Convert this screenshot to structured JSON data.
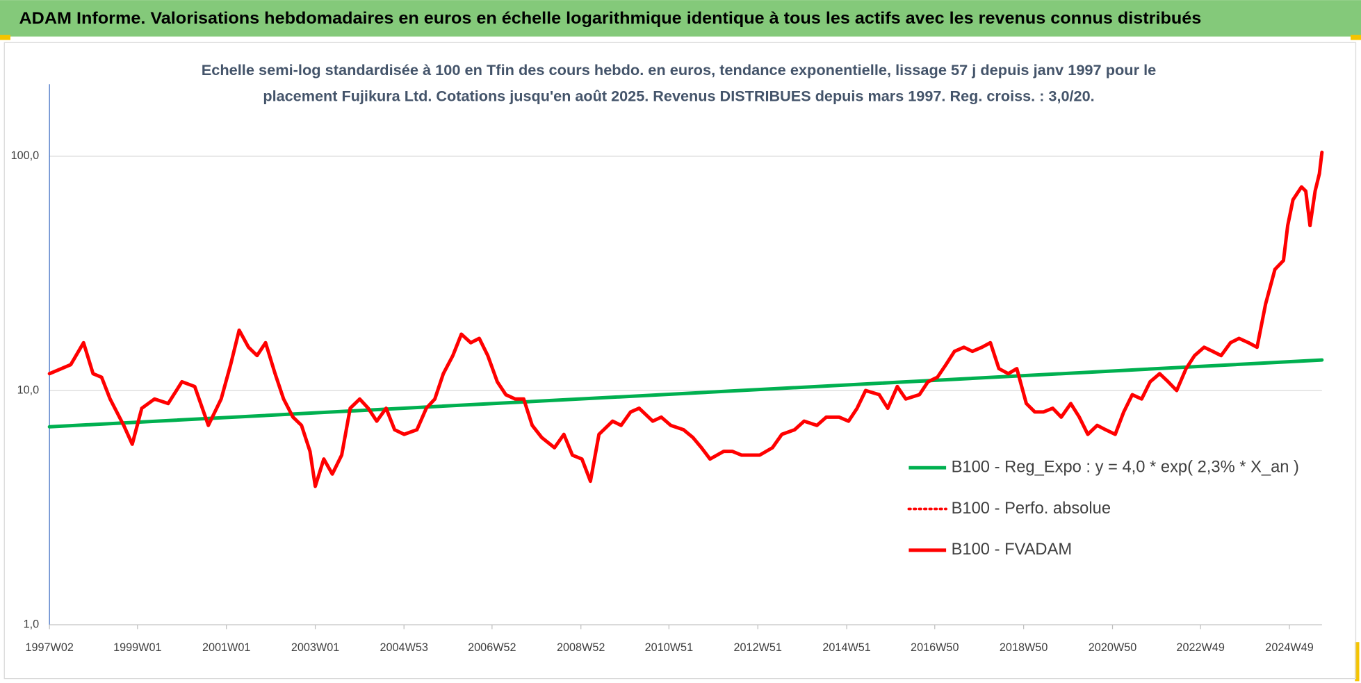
{
  "chart_data": {
    "type": "line",
    "title": "ADAM Informe. Valorisations hebdomadaires en euros en échelle logarithmique identique à tous les actifs avec les revenus connus distribués",
    "subtitle": [
      "Echelle semi-log standardisée à 100 en Tfin des cours hebdo. en euros, tendance exponentielle, lissage 57 j depuis janv 1997 pour le",
      "placement Fujikura Ltd. Cotations jusqu'en août 2025. Revenus DISTRIBUES depuis mars 1997. Reg. croiss. : 3,0/20."
    ],
    "log_scale": true,
    "grid": true,
    "legend": "center-right",
    "ylim": [
      1,
      203
    ],
    "yticks": [
      {
        "value": 1,
        "label": "1,0"
      },
      {
        "value": 10,
        "label": "10,0"
      },
      {
        "value": 100,
        "label": "100,0"
      }
    ],
    "xlim": [
      "1997W02",
      "2025W35"
    ],
    "xticks": [
      "1997W02",
      "1999W01",
      "2001W01",
      "2003W01",
      "2004W53",
      "2006W52",
      "2008W52",
      "2010W51",
      "2012W51",
      "2014W51",
      "2016W50",
      "2018W50",
      "2020W50",
      "2022W49",
      "2024W49"
    ],
    "x": [
      "1997W02",
      "1997W16",
      "1997W27",
      "1997W42",
      "1998W01",
      "1998W11",
      "1998W21",
      "1998W37",
      "1998W47",
      "1999W06",
      "1999W21",
      "1999W37",
      "2000W01",
      "2000W16",
      "2000W32",
      "2000W47",
      "2001W06",
      "2001W16",
      "2001W27",
      "2001W37",
      "2001W47",
      "2002W06",
      "2002W16",
      "2002W27",
      "2002W37",
      "2002W47",
      "2003W01",
      "2003W11",
      "2003W21",
      "2003W32",
      "2003W42",
      "2004W01",
      "2004W11",
      "2004W21",
      "2004W32",
      "2004W42",
      "2005W01",
      "2005W16",
      "2005W27",
      "2005W37",
      "2005W47",
      "2006W06",
      "2006W16",
      "2006W27",
      "2006W37",
      "2006W47",
      "2007W06",
      "2007W16",
      "2007W27",
      "2007W37",
      "2007W47",
      "2008W06",
      "2008W21",
      "2008W32",
      "2008W42",
      "2009W01",
      "2009W11",
      "2009W21",
      "2009W37",
      "2009W47",
      "2010W06",
      "2010W16",
      "2010W32",
      "2010W42",
      "2011W01",
      "2011W16",
      "2011W27",
      "2011W37",
      "2011W47",
      "2012W11",
      "2012W21",
      "2012W32",
      "2012W42",
      "2013W01",
      "2013W16",
      "2013W27",
      "2013W42",
      "2014W01",
      "2014W16",
      "2014W27",
      "2014W42",
      "2015W01",
      "2015W11",
      "2015W21",
      "2015W37",
      "2015W47",
      "2016W06",
      "2016W16",
      "2016W32",
      "2016W42",
      "2017W01",
      "2017W11",
      "2017W21",
      "2017W32",
      "2017W42",
      "2018W01",
      "2018W11",
      "2018W21",
      "2018W32",
      "2018W42",
      "2019W01",
      "2019W11",
      "2019W21",
      "2019W32",
      "2019W42",
      "2020W01",
      "2020W11",
      "2020W21",
      "2020W32",
      "2020W42",
      "2021W01",
      "2021W11",
      "2021W21",
      "2021W32",
      "2021W42",
      "2022W01",
      "2022W11",
      "2022W21",
      "2022W32",
      "2022W42",
      "2023W01",
      "2023W11",
      "2023W21",
      "2023W32",
      "2023W42",
      "2024W01",
      "2024W11",
      "2024W21",
      "2024W32",
      "2024W42",
      "2024W47",
      "2025W01",
      "2025W11",
      "2025W16",
      "2025W21",
      "2025W27",
      "2025W32",
      "2025W35"
    ],
    "series": [
      {
        "name": "B100 - Reg_Expo : y = 4,0 * exp( 2,3% *  X_an )",
        "color": "#00b050",
        "style": "solid",
        "x": [
          "1997W02",
          "2025W35"
        ],
        "values": [
          7.0,
          13.5
        ]
      },
      {
        "name": "B100 - Perfo. absolue",
        "color": "#ff0000",
        "style": "dotted",
        "values": [
          11.8,
          12.4,
          12.9,
          16.0,
          11.8,
          11.4,
          9.2,
          7.1,
          5.9,
          8.4,
          9.2,
          8.8,
          10.9,
          10.4,
          7.1,
          9.2,
          12.9,
          18.1,
          15.3,
          14.1,
          16.0,
          11.8,
          9.2,
          7.7,
          7.1,
          5.5,
          3.9,
          5.1,
          4.4,
          5.3,
          8.4,
          9.2,
          8.4,
          7.4,
          8.4,
          6.8,
          6.5,
          6.8,
          8.4,
          9.2,
          11.8,
          14.1,
          17.4,
          16.0,
          16.7,
          14.1,
          10.9,
          9.6,
          9.2,
          9.2,
          7.1,
          6.3,
          5.7,
          6.5,
          5.3,
          5.1,
          4.1,
          6.5,
          7.4,
          7.1,
          8.1,
          8.4,
          7.4,
          7.7,
          7.1,
          6.8,
          6.3,
          5.7,
          5.1,
          5.5,
          5.5,
          5.3,
          5.3,
          5.3,
          5.7,
          6.5,
          6.8,
          7.4,
          7.1,
          7.7,
          7.7,
          7.4,
          8.4,
          10.0,
          9.6,
          8.4,
          10.4,
          9.2,
          9.6,
          10.9,
          11.4,
          12.9,
          14.7,
          15.3,
          14.7,
          15.3,
          16.0,
          12.4,
          11.8,
          12.4,
          8.8,
          8.1,
          8.1,
          8.4,
          7.7,
          8.8,
          7.7,
          6.5,
          7.1,
          6.8,
          6.5,
          8.1,
          9.6,
          9.2,
          10.9,
          11.8,
          10.9,
          10.0,
          12.4,
          14.1,
          15.3,
          14.7,
          14.1,
          16.0,
          16.7,
          16.0,
          15.3,
          23.4,
          32.9,
          35.9,
          50.6,
          65.2,
          74.0,
          71.0,
          50.6,
          71.0,
          84.3,
          104
        ]
      },
      {
        "name": "B100 - FVADAM",
        "color": "#ff0000",
        "style": "solid",
        "values": [
          11.8,
          12.4,
          12.9,
          16.0,
          11.8,
          11.4,
          9.2,
          7.1,
          5.9,
          8.4,
          9.2,
          8.8,
          10.9,
          10.4,
          7.1,
          9.2,
          12.9,
          18.1,
          15.3,
          14.1,
          16.0,
          11.8,
          9.2,
          7.7,
          7.1,
          5.5,
          3.9,
          5.1,
          4.4,
          5.3,
          8.4,
          9.2,
          8.4,
          7.4,
          8.4,
          6.8,
          6.5,
          6.8,
          8.4,
          9.2,
          11.8,
          14.1,
          17.4,
          16.0,
          16.7,
          14.1,
          10.9,
          9.6,
          9.2,
          9.2,
          7.1,
          6.3,
          5.7,
          6.5,
          5.3,
          5.1,
          4.1,
          6.5,
          7.4,
          7.1,
          8.1,
          8.4,
          7.4,
          7.7,
          7.1,
          6.8,
          6.3,
          5.7,
          5.1,
          5.5,
          5.5,
          5.3,
          5.3,
          5.3,
          5.7,
          6.5,
          6.8,
          7.4,
          7.1,
          7.7,
          7.7,
          7.4,
          8.4,
          10.0,
          9.6,
          8.4,
          10.4,
          9.2,
          9.6,
          10.9,
          11.4,
          12.9,
          14.7,
          15.3,
          14.7,
          15.3,
          16.0,
          12.4,
          11.8,
          12.4,
          8.8,
          8.1,
          8.1,
          8.4,
          7.7,
          8.8,
          7.7,
          6.5,
          7.1,
          6.8,
          6.5,
          8.1,
          9.6,
          9.2,
          10.9,
          11.8,
          10.9,
          10.0,
          12.4,
          14.1,
          15.3,
          14.7,
          14.1,
          16.0,
          16.7,
          16.0,
          15.3,
          23.4,
          32.9,
          35.9,
          50.6,
          65.2,
          74.0,
          71.0,
          50.6,
          71.0,
          84.3,
          104
        ]
      }
    ]
  }
}
